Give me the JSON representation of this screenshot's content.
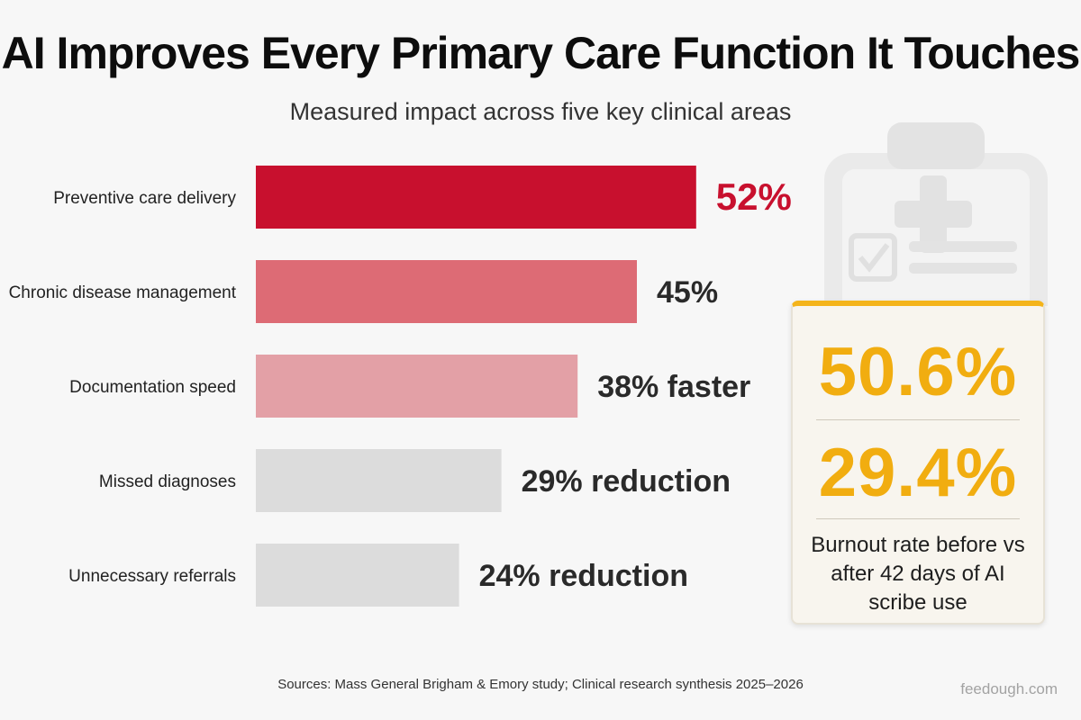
{
  "title": "AI Improves Every Primary Care Function It Touches",
  "subtitle": "Measured impact across five key clinical areas",
  "chart_data": {
    "type": "bar",
    "orientation": "horizontal",
    "categories": [
      "Preventive care delivery",
      "Chronic disease management",
      "Documentation speed",
      "Missed diagnoses",
      "Unnecessary referrals"
    ],
    "values": [
      52,
      45,
      38,
      29,
      24
    ],
    "value_labels": [
      "52%",
      "45%",
      "38% faster",
      "29% reduction",
      "24% reduction"
    ],
    "bar_colors": [
      "#c8102e",
      "#dd6b75",
      "#e3a0a6",
      "#dcdcdc",
      "#dcdcdc"
    ],
    "label_colors": [
      "#c8102e",
      "#2a2a2a",
      "#2a2a2a",
      "#2a2a2a",
      "#2a2a2a"
    ],
    "grid": false,
    "title": "",
    "xlabel": "",
    "ylabel": ""
  },
  "stat_card": {
    "before": "50.6%",
    "after": "29.4%",
    "caption": "Burnout rate before vs after 42 days of AI scribe use",
    "accent_color": "#f4b41a"
  },
  "decoration": {
    "icon": "clipboard-medical-icon"
  },
  "footer": {
    "sources": "Sources: Mass General Brigham & Emory study; Clinical research synthesis 2025–2026",
    "brand": "feedough.com"
  }
}
